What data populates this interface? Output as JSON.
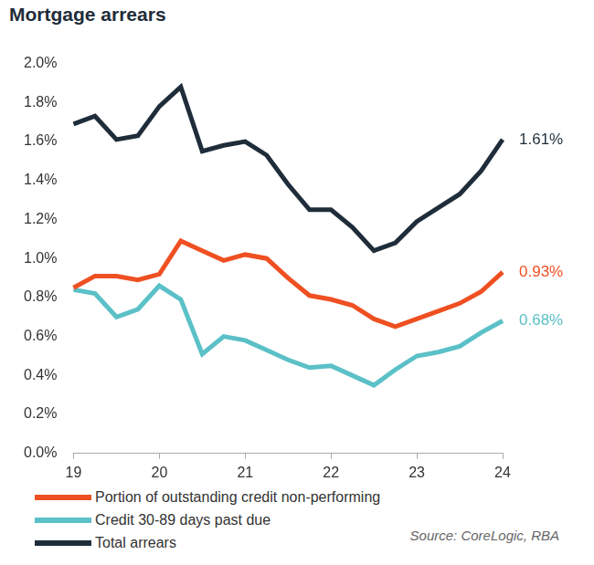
{
  "chart_data": {
    "type": "line",
    "title": "Mortgage arrears",
    "source": "Source: CoreLogic, RBA",
    "categories": [
      "19",
      null,
      null,
      null,
      "20",
      null,
      null,
      null,
      "21",
      null,
      null,
      null,
      "22",
      null,
      null,
      null,
      "23",
      null,
      null,
      null,
      "24"
    ],
    "series": [
      {
        "name": "Portion of outstanding credit non-performing",
        "color": "#ef5022",
        "values": [
          0.85,
          0.91,
          0.91,
          0.89,
          0.92,
          1.09,
          1.04,
          0.99,
          1.02,
          1.0,
          0.9,
          0.81,
          0.79,
          0.76,
          0.69,
          0.65,
          0.69,
          0.73,
          0.77,
          0.83,
          0.93
        ],
        "value_labels": [
          null,
          null,
          null,
          null,
          null,
          null,
          null,
          null,
          null,
          null,
          null,
          null,
          null,
          null,
          null,
          null,
          null,
          null,
          null,
          null,
          "0.93%"
        ]
      },
      {
        "name": "Credit 30-89 days past due",
        "color": "#5bc0c7",
        "values": [
          0.84,
          0.82,
          0.7,
          0.74,
          0.86,
          0.79,
          0.51,
          0.6,
          0.58,
          0.53,
          0.48,
          0.44,
          0.45,
          0.4,
          0.35,
          0.43,
          0.5,
          0.52,
          0.55,
          0.62,
          0.68
        ],
        "value_labels": [
          null,
          null,
          null,
          null,
          null,
          null,
          null,
          null,
          null,
          null,
          null,
          null,
          null,
          null,
          null,
          null,
          null,
          null,
          null,
          null,
          "0.68%"
        ]
      },
      {
        "name": "Total arrears",
        "color": "#1f2d3a",
        "values": [
          1.69,
          1.73,
          1.61,
          1.63,
          1.78,
          1.88,
          1.55,
          1.58,
          1.6,
          1.53,
          1.38,
          1.25,
          1.25,
          1.16,
          1.04,
          1.08,
          1.19,
          1.26,
          1.33,
          1.45,
          1.61
        ],
        "value_labels": [
          null,
          null,
          null,
          null,
          null,
          null,
          null,
          null,
          null,
          null,
          null,
          null,
          null,
          null,
          null,
          null,
          null,
          null,
          null,
          null,
          "1.61%"
        ]
      }
    ],
    "ylim": [
      0,
      2
    ],
    "yticks": [
      {
        "value": 0,
        "label": "0.0%"
      },
      {
        "value": 0.2,
        "label": "0.2%"
      },
      {
        "value": 0.4,
        "label": "0.4%"
      },
      {
        "value": 0.6,
        "label": "0.6%"
      },
      {
        "value": 0.8,
        "label": "0.8%"
      },
      {
        "value": 1,
        "label": "1.0%"
      },
      {
        "value": 1.2,
        "label": "1.2%"
      },
      {
        "value": 1.4,
        "label": "1.4%"
      },
      {
        "value": 1.6,
        "label": "1.6%"
      },
      {
        "value": 1.8,
        "label": "1.8%"
      },
      {
        "value": 2,
        "label": "2.0%"
      }
    ],
    "grid": false,
    "legend": "bottom-left",
    "data_labels": true
  }
}
